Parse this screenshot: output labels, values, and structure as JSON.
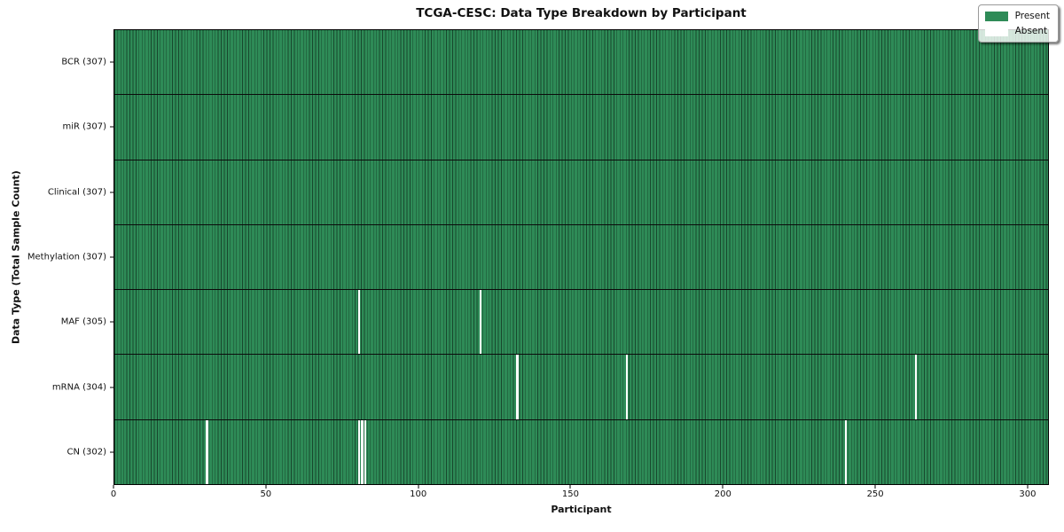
{
  "title": "TCGA-CESC: Data Type Breakdown by Participant",
  "axes": {
    "xlabel": "Participant",
    "ylabel": "Data Type (Total Sample Count)"
  },
  "legend": {
    "present_label": "Present",
    "absent_label": "Absent"
  },
  "colors": {
    "present": "#2e8b57",
    "absent": "#ffffff",
    "cell_edge": "rgba(0,0,0,0.48)",
    "row_separator": "#0b0b0b"
  },
  "chart_data": {
    "type": "heatmap",
    "title": "TCGA-CESC: Data Type Breakdown by Participant",
    "xlabel": "Participant",
    "ylabel": "Data Type (Total Sample Count)",
    "xlim": [
      0,
      307
    ],
    "n_participants": 307,
    "x_ticks": [
      0,
      50,
      100,
      150,
      200,
      250,
      300
    ],
    "legend_entries": [
      "Present",
      "Absent"
    ],
    "legend_position": "upper right",
    "rows": [
      {
        "data_type": "BCR",
        "label": "BCR (307)",
        "present_count": 307,
        "missing_participants": []
      },
      {
        "data_type": "miR",
        "label": "miR (307)",
        "present_count": 307,
        "missing_participants": []
      },
      {
        "data_type": "Clinical",
        "label": "Clinical (307)",
        "present_count": 307,
        "missing_participants": []
      },
      {
        "data_type": "Methylation",
        "label": "Methylation (307)",
        "present_count": 307,
        "missing_participants": []
      },
      {
        "data_type": "MAF",
        "label": "MAF (305)",
        "present_count": 305,
        "missing_participants": [
          80,
          120
        ]
      },
      {
        "data_type": "mRNA",
        "label": "mRNA (304)",
        "present_count": 304,
        "missing_participants": [
          132,
          168,
          263
        ]
      },
      {
        "data_type": "CN",
        "label": "CN (302)",
        "present_count": 302,
        "missing_participants": [
          30,
          80,
          81,
          82,
          240
        ]
      }
    ]
  }
}
